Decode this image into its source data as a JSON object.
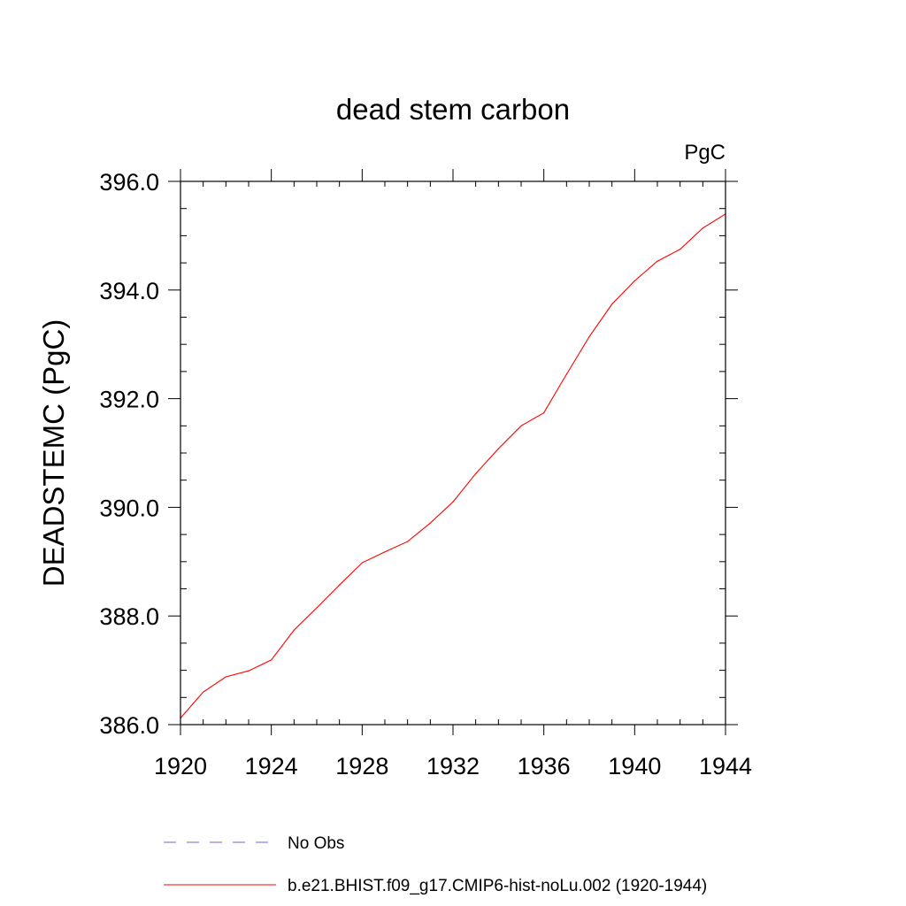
{
  "chart_data": {
    "type": "line",
    "title": "dead stem carbon",
    "units_label": "PgC",
    "ylabel": "DEADSTEMC  (PgC)",
    "xlabel": "",
    "xlim": [
      1920,
      1944
    ],
    "ylim": [
      386.0,
      396.0
    ],
    "x_ticks": [
      "1920",
      "1924",
      "1928",
      "1932",
      "1936",
      "1940",
      "1944"
    ],
    "y_ticks": [
      "386.0",
      "388.0",
      "390.0",
      "392.0",
      "394.0",
      "396.0"
    ],
    "grid": false,
    "legend_position": "bottom",
    "series": [
      {
        "name": "No Obs",
        "color": "#6b6bd6",
        "dash": "dashed",
        "x": [],
        "values": []
      },
      {
        "name": "b.e21.BHIST.f09_g17.CMIP6-hist-noLu.002 (1920-1944)",
        "color": "#ff0000",
        "dash": "solid",
        "x": [
          1920,
          1921,
          1922,
          1923,
          1924,
          1925,
          1926,
          1927,
          1928,
          1929,
          1930,
          1931,
          1932,
          1933,
          1934,
          1935,
          1936,
          1937,
          1938,
          1939,
          1940,
          1941,
          1942,
          1943,
          1944
        ],
        "values": [
          386.12,
          386.6,
          386.88,
          386.99,
          387.19,
          387.74,
          388.15,
          388.57,
          388.98,
          389.18,
          389.37,
          389.71,
          390.1,
          390.62,
          391.08,
          391.5,
          391.74,
          392.45,
          393.14,
          393.74,
          394.17,
          394.53,
          394.75,
          395.14,
          395.4
        ]
      }
    ]
  }
}
